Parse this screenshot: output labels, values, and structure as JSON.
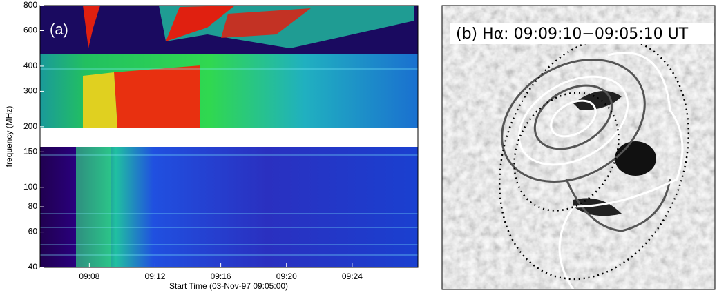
{
  "chart_data": [
    {
      "type": "spectrogram",
      "panel_label": "(a)",
      "y_label": "frequency (MHz)",
      "x_label": "Start Time (03-Nov-97 09:05:00)",
      "xlim": [
        "09:05",
        "09:28"
      ],
      "xticks": [
        "09:08",
        "09:12",
        "09:16",
        "09:20",
        "09:24"
      ],
      "ylim": [
        40,
        800
      ],
      "yticks": [
        40,
        60,
        80,
        100,
        150,
        200,
        300,
        400,
        600,
        800
      ],
      "log_y": true
    },
    {
      "type": "image",
      "title": "(b) Hα: 09:09:10−09:05:10 UT"
    }
  ]
}
